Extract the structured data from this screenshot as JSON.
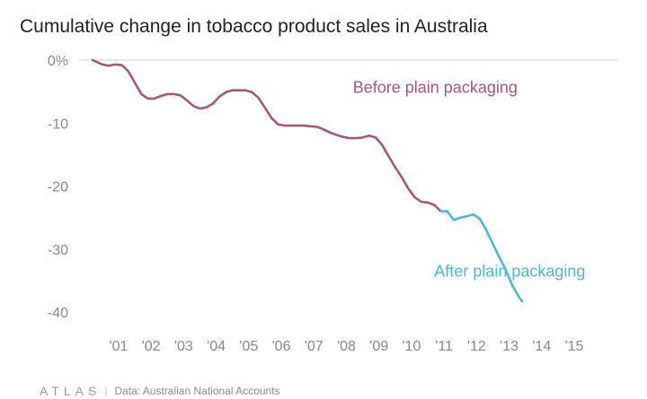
{
  "chart_data": {
    "type": "line",
    "title": "Cumulative change in tobacco product sales in Australia",
    "xlabel": "",
    "ylabel": "",
    "ylim": [
      -40,
      0
    ],
    "xlim": [
      2000.2,
      2015.8
    ],
    "y_ticks": [
      0,
      -10,
      -20,
      -30,
      -40
    ],
    "y_tick_labels": [
      "0%",
      "-10",
      "-20",
      "-30",
      "-40"
    ],
    "x_ticks": [
      2001,
      2002,
      2003,
      2004,
      2005,
      2006,
      2007,
      2008,
      2009,
      2010,
      2011,
      2012,
      2013,
      2014,
      2015
    ],
    "x_tick_labels": [
      "'01",
      "'02",
      "'03",
      "'04",
      "'05",
      "'06",
      "'07",
      "'08",
      "'09",
      "'10",
      "'11",
      "'12",
      "'13",
      "'14",
      "'15"
    ],
    "grid": false,
    "series": [
      {
        "name": "Before plain packaging",
        "color": "#a8577a",
        "points": [
          [
            2000.2,
            0.0
          ],
          [
            2000.5,
            -0.7
          ],
          [
            2000.7,
            -0.9
          ],
          [
            2000.9,
            -0.7
          ],
          [
            2001.1,
            -0.8
          ],
          [
            2001.3,
            -1.8
          ],
          [
            2001.5,
            -3.6
          ],
          [
            2001.7,
            -5.4
          ],
          [
            2001.9,
            -6.1
          ],
          [
            2002.1,
            -6.1
          ],
          [
            2002.3,
            -5.7
          ],
          [
            2002.5,
            -5.4
          ],
          [
            2002.7,
            -5.4
          ],
          [
            2002.9,
            -5.6
          ],
          [
            2003.1,
            -6.4
          ],
          [
            2003.3,
            -7.3
          ],
          [
            2003.5,
            -7.7
          ],
          [
            2003.7,
            -7.5
          ],
          [
            2003.9,
            -6.9
          ],
          [
            2004.1,
            -5.8
          ],
          [
            2004.3,
            -5.1
          ],
          [
            2004.5,
            -4.8
          ],
          [
            2004.7,
            -4.8
          ],
          [
            2004.9,
            -4.8
          ],
          [
            2005.1,
            -5.1
          ],
          [
            2005.3,
            -6.0
          ],
          [
            2005.5,
            -7.6
          ],
          [
            2005.7,
            -9.2
          ],
          [
            2005.9,
            -10.2
          ],
          [
            2006.1,
            -10.4
          ],
          [
            2006.3,
            -10.4
          ],
          [
            2006.5,
            -10.4
          ],
          [
            2006.7,
            -10.4
          ],
          [
            2006.9,
            -10.5
          ],
          [
            2007.1,
            -10.6
          ],
          [
            2007.3,
            -11.0
          ],
          [
            2007.5,
            -11.5
          ],
          [
            2007.7,
            -11.9
          ],
          [
            2007.9,
            -12.2
          ],
          [
            2008.1,
            -12.4
          ],
          [
            2008.3,
            -12.4
          ],
          [
            2008.5,
            -12.3
          ],
          [
            2008.7,
            -12.0
          ],
          [
            2008.9,
            -12.3
          ],
          [
            2009.1,
            -13.5
          ],
          [
            2009.3,
            -15.3
          ],
          [
            2009.5,
            -17.0
          ],
          [
            2009.7,
            -18.6
          ],
          [
            2009.9,
            -20.4
          ],
          [
            2010.1,
            -21.8
          ],
          [
            2010.3,
            -22.5
          ],
          [
            2010.5,
            -22.6
          ],
          [
            2010.7,
            -23.0
          ],
          [
            2010.9,
            -24.0
          ]
        ]
      },
      {
        "name": "After plain packaging",
        "color": "#4bb8d4",
        "points": [
          [
            2010.9,
            -24.0
          ],
          [
            2011.1,
            -24.0
          ],
          [
            2011.3,
            -25.4
          ],
          [
            2011.5,
            -25.0
          ],
          [
            2011.7,
            -24.8
          ],
          [
            2011.9,
            -24.5
          ],
          [
            2012.1,
            -25.2
          ],
          [
            2012.3,
            -27.0
          ],
          [
            2012.5,
            -29.2
          ],
          [
            2012.7,
            -31.3
          ],
          [
            2012.9,
            -33.4
          ],
          [
            2013.1,
            -35.8
          ],
          [
            2013.3,
            -37.6
          ],
          [
            2013.4,
            -38.3
          ]
        ]
      }
    ],
    "annotations": [
      {
        "text": "Before plain packaging",
        "x": 2008.2,
        "y": -5.2,
        "color": "#a8577a"
      },
      {
        "text": "After plain packaging",
        "x": 2010.7,
        "y": -34.4,
        "color": "#4bb8d4"
      }
    ]
  },
  "footer": {
    "brand": "ATLAS",
    "source": "Data: Australian National Accounts"
  }
}
